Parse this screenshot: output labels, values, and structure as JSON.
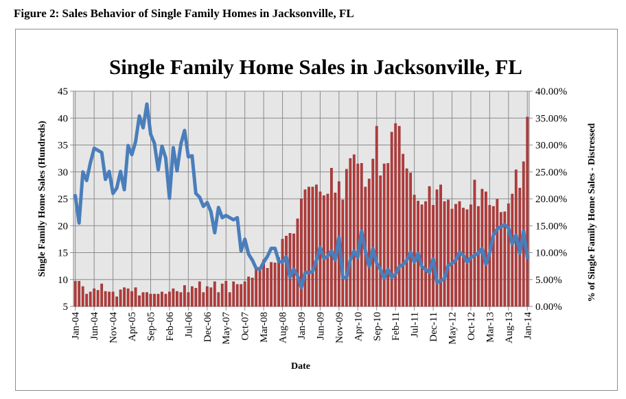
{
  "caption": "Figure 2: Sales Behavior of Single Family Homes in Jacksonville, FL",
  "chart_data": {
    "type": "bar+line",
    "title": "Single Family Home Sales in Jacksonville, FL",
    "xlabel": "Date",
    "ylabel": "Single Family Home Sales (Hundreds)",
    "y2label": "% of Single Family Home Sales - Distressed",
    "x_start": "Jan-04",
    "x_frequency": "monthly",
    "x_tick_labels": [
      "Jan-04",
      "Jun-04",
      "Nov-04",
      "Apr-05",
      "Sep-05",
      "Feb-06",
      "Jul-06",
      "Dec-06",
      "May-07",
      "Oct-07",
      "Mar-08",
      "Aug-08",
      "Jan-09",
      "Jun-09",
      "Nov-09",
      "Apr-10",
      "Sep-10",
      "Feb-11",
      "Jul-11",
      "Dec-11",
      "May-12",
      "Oct-12",
      "Mar-13",
      "Aug-13",
      "Jan-14"
    ],
    "ylim": [
      5,
      45
    ],
    "y_ticks": [
      "5",
      "10",
      "15",
      "20",
      "25",
      "30",
      "35",
      "40",
      "45"
    ],
    "y2lim": [
      0,
      40
    ],
    "y2_ticks": [
      "0.00%",
      "5.00%",
      "10.00%",
      "15.00%",
      "20.00%",
      "25.00%",
      "30.00%",
      "35.00%",
      "40.00%"
    ],
    "grid": true,
    "legend": "none",
    "series": [
      {
        "name": "Single Family Home Sales (Hundreds)",
        "type": "line",
        "axis": "left",
        "color": "#4a7ebb",
        "values": [
          25.6,
          20.5,
          30,
          28.4,
          31.7,
          34.4,
          34,
          33.6,
          28.6,
          30.1,
          26,
          27,
          30.1,
          26.7,
          34.9,
          33.2,
          35.6,
          40.4,
          38.2,
          42.6,
          37,
          35.3,
          30.4,
          34.8,
          32.6,
          25.1,
          34.5,
          30.2,
          35.1,
          37.7,
          32.8,
          33,
          26,
          25.3,
          23.6,
          24.3,
          22.6,
          18.7,
          23.4,
          21.5,
          21.9,
          21.5,
          21.1,
          21.5,
          15.3,
          17.5,
          14.7,
          13.6,
          12.1,
          11.9,
          13.2,
          14.3,
          15.8,
          15.8,
          13.4,
          13.2,
          14.3,
          10.4,
          11.9,
          10.7,
          8.5,
          11.3,
          11.3,
          11.5,
          13.6,
          16,
          13.9,
          14.3,
          15.3,
          13.6,
          17.9,
          10.4,
          10.4,
          13.6,
          15.3,
          14.1,
          19,
          15.3,
          12.4,
          15.8,
          13,
          11.9,
          10.2,
          11.9,
          10.4,
          11.0,
          12.4,
          12.8,
          13.6,
          15.1,
          13.2,
          14.9,
          12.4,
          11.9,
          11.3,
          13.9,
          9.4,
          9.8,
          10.2,
          12.6,
          13,
          13.6,
          15.1,
          14.5,
          13.2,
          14.1,
          14.5,
          14.9,
          15.8,
          12.8,
          14.9,
          18.3,
          19.4,
          19.8,
          20.2,
          19.6,
          16.6,
          18.3,
          14.9,
          19,
          14.1
        ]
      },
      {
        "name": "% of Single Family Home Sales - Distressed",
        "type": "bar",
        "axis": "right",
        "color": "#b33b3b",
        "values": [
          4.7,
          4.7,
          3.7,
          2.3,
          2.7,
          3.3,
          3,
          4.2,
          2.8,
          2.7,
          2.7,
          1.8,
          3.1,
          3.5,
          3.3,
          2.8,
          3.5,
          2,
          2.6,
          2.6,
          2.3,
          2.3,
          2.3,
          2.7,
          2.3,
          2.7,
          3.3,
          2.8,
          2.6,
          3.9,
          2.6,
          3.7,
          3.4,
          4.6,
          2.6,
          3.7,
          3.5,
          4.6,
          2.6,
          4.2,
          4.7,
          2.6,
          4.6,
          4.1,
          4.1,
          4.6,
          5.5,
          5.3,
          6.9,
          6.8,
          8.7,
          7.1,
          8.2,
          8.1,
          9.1,
          12.5,
          13.1,
          13.6,
          13.5,
          16.3,
          20,
          21.7,
          22.2,
          22.2,
          22.6,
          21.3,
          20.6,
          20.9,
          25.7,
          21.1,
          23.2,
          19.8,
          25.5,
          27.5,
          28.2,
          26.5,
          26.6,
          22.2,
          23.7,
          27.4,
          33.5,
          24.3,
          26.5,
          26.6,
          32.4,
          34,
          33.5,
          28.3,
          25.6,
          24.8,
          20.7,
          19.6,
          18.9,
          19.5,
          22.3,
          18.8,
          21.7,
          22.6,
          19.5,
          19.8,
          18.1,
          19,
          19.5,
          18.3,
          18,
          18.9,
          23.5,
          18.6,
          21.8,
          21.3,
          18.8,
          18.6,
          19.9,
          17.5,
          17.6,
          19.1,
          20.9,
          25.4,
          22,
          26.9,
          35.2
        ]
      }
    ]
  }
}
